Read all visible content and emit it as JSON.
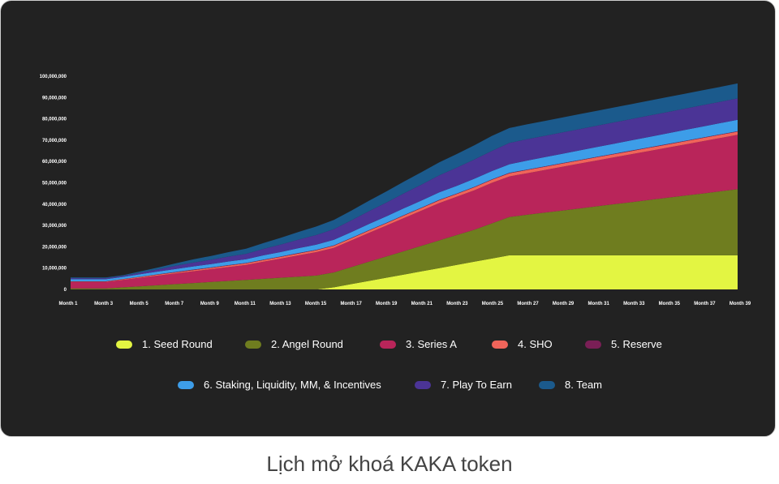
{
  "caption": "Lịch mở khoá KAKA token",
  "chart_data": {
    "type": "area",
    "stacked": true,
    "title": "",
    "xlabel": "",
    "ylabel": "",
    "ylim": [
      0,
      100000000
    ],
    "y_ticks": [
      "0",
      "10,000,000",
      "20,000,000",
      "30,000,000",
      "40,000,000",
      "50,000,000",
      "60,000,000",
      "70,000,000",
      "80,000,000",
      "90,000,000",
      "100,000,000"
    ],
    "x_ticks": [
      "Month 1",
      "Month 3",
      "Month 5",
      "Month 7",
      "Month 9",
      "Month 11",
      "Month 13",
      "Month 15",
      "Month 17",
      "Month 19",
      "Month 21",
      "Month 23",
      "Month 25",
      "Month 27",
      "Month 29",
      "Month 31",
      "Month 33",
      "Month 35",
      "Month 37",
      "Month 39"
    ],
    "x": [
      1,
      2,
      3,
      4,
      5,
      6,
      7,
      8,
      9,
      10,
      11,
      12,
      13,
      14,
      15,
      16,
      17,
      18,
      19,
      20,
      21,
      22,
      23,
      24,
      25,
      26,
      27,
      28,
      29,
      30,
      31,
      32,
      33,
      34,
      35,
      36,
      37,
      38,
      39
    ],
    "series": [
      {
        "name": "1. Seed Round",
        "color": "#e3f542",
        "values": [
          0,
          0,
          0,
          0,
          0,
          0,
          0,
          0,
          0,
          0,
          0,
          0,
          0,
          0,
          0,
          1000000,
          2500000,
          4000000,
          5500000,
          7000000,
          8500000,
          10000000,
          11500000,
          13000000,
          14500000,
          16000000,
          16000000,
          16000000,
          16000000,
          16000000,
          16000000,
          16000000,
          16000000,
          16000000,
          16000000,
          16000000,
          16000000,
          16000000,
          16000000
        ]
      },
      {
        "name": "2. Angel Round",
        "color": "#6f7d1f",
        "values": [
          500000,
          500000,
          500000,
          1000000,
          1500000,
          2000000,
          2500000,
          3000000,
          3500000,
          4000000,
          4500000,
          5000000,
          5500000,
          6000000,
          6500000,
          7000000,
          8000000,
          9000000,
          10000000,
          11000000,
          12000000,
          13000000,
          14000000,
          15000000,
          16500000,
          18000000,
          19000000,
          20000000,
          21000000,
          22000000,
          23000000,
          24000000,
          25000000,
          26000000,
          27000000,
          28000000,
          29000000,
          30000000,
          31000000
        ]
      },
      {
        "name": "3. Series A",
        "color": "#b9255a",
        "values": [
          3000000,
          3000000,
          3000000,
          3500000,
          4000000,
          4500000,
          5000000,
          5500000,
          6000000,
          6500000,
          7000000,
          8000000,
          9000000,
          10000000,
          11000000,
          11500000,
          12500000,
          13500000,
          14500000,
          15500000,
          16500000,
          17500000,
          18000000,
          18500000,
          19000000,
          19000000,
          19500000,
          20000000,
          20500000,
          21000000,
          21500000,
          22000000,
          22500000,
          23000000,
          23500000,
          24000000,
          24500000,
          25000000,
          25500000
        ]
      },
      {
        "name": "4. SHO",
        "color": "#f0645a",
        "values": [
          200000,
          200000,
          200000,
          300000,
          400000,
          500000,
          500000,
          600000,
          600000,
          700000,
          700000,
          800000,
          800000,
          900000,
          900000,
          1000000,
          1000000,
          1100000,
          1100000,
          1200000,
          1200000,
          1300000,
          1300000,
          1400000,
          1400000,
          1500000,
          1500000,
          1500000,
          1500000,
          1500000,
          1500000,
          1500000,
          1500000,
          1500000,
          1500000,
          1500000,
          1500000,
          1500000,
          1500000
        ]
      },
      {
        "name": "5. Reserve",
        "color": "#7a1f56",
        "values": [
          100000,
          100000,
          100000,
          100000,
          100000,
          100000,
          200000,
          200000,
          200000,
          200000,
          200000,
          200000,
          200000,
          200000,
          200000,
          200000,
          200000,
          200000,
          200000,
          200000,
          200000,
          200000,
          200000,
          200000,
          200000,
          200000,
          200000,
          200000,
          200000,
          200000,
          200000,
          200000,
          200000,
          200000,
          200000,
          200000,
          200000,
          200000,
          200000
        ]
      },
      {
        "name": "6. Staking, Liquidity, MM, & Incentives",
        "color": "#3d9de8",
        "values": [
          1000000,
          1000000,
          1000000,
          1000000,
          1200000,
          1300000,
          1400000,
          1500000,
          1600000,
          1700000,
          1800000,
          2000000,
          2100000,
          2300000,
          2400000,
          2600000,
          2700000,
          2900000,
          3000000,
          3200000,
          3300000,
          3500000,
          3600000,
          3800000,
          3900000,
          4000000,
          4200000,
          4300000,
          4400000,
          4500000,
          4600000,
          4700000,
          4800000,
          4900000,
          5000000,
          5100000,
          5200000,
          5300000,
          5400000
        ]
      },
      {
        "name": "7. Play To Earn",
        "color": "#4b3496",
        "values": [
          500000,
          500000,
          500000,
          500000,
          700000,
          1000000,
          1500000,
          1800000,
          2000000,
          2300000,
          2500000,
          3000000,
          3500000,
          4000000,
          4500000,
          5000000,
          5500000,
          6000000,
          6500000,
          7000000,
          7500000,
          8000000,
          8500000,
          9000000,
          9500000,
          10000000,
          10000000,
          10000000,
          10000000,
          10000000,
          10000000,
          10000000,
          10000000,
          10000000,
          10000000,
          10000000,
          10000000,
          10000000,
          10000000
        ]
      },
      {
        "name": "8. Team",
        "color": "#1b5a8c",
        "values": [
          300000,
          300000,
          300000,
          300000,
          600000,
          900000,
          1200000,
          1500000,
          1800000,
          2100000,
          2400000,
          2800000,
          3200000,
          3600000,
          4000000,
          4300000,
          4600000,
          4900000,
          5200000,
          5500000,
          5800000,
          6100000,
          6400000,
          6700000,
          7000000,
          7000000,
          7000000,
          7000000,
          7000000,
          7000000,
          7000000,
          7000000,
          7000000,
          7000000,
          7000000,
          7000000,
          7000000,
          7000000,
          7000000
        ]
      }
    ],
    "legend": "bottom"
  }
}
